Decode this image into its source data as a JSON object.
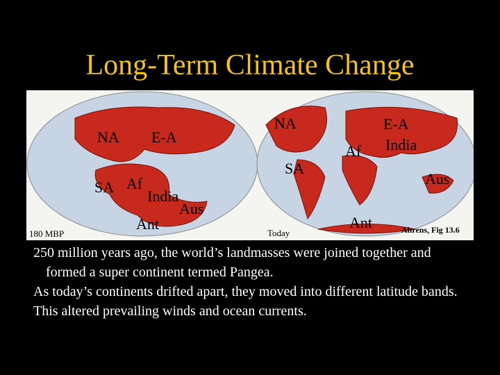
{
  "title": "Long-Term Climate Change",
  "figure": {
    "left_map": {
      "caption": "180 MBP",
      "labels": [
        "NA",
        "E-A",
        "SA",
        "Af",
        "India",
        "Aus",
        "Ant"
      ]
    },
    "right_map": {
      "caption": "Today",
      "labels": [
        "NA",
        "E-A",
        "India",
        "Af",
        "SA",
        "Aus",
        "Ant"
      ]
    },
    "credit": "Ahrens, Fig 13.6"
  },
  "body": [
    "250 million years ago, the world’s landmasses were joined together and formed a super continent termed Pangea.",
    "As today’s continents drifted apart, they moved into different latitude bands.",
    "This altered prevailing winds and ocean currents."
  ]
}
